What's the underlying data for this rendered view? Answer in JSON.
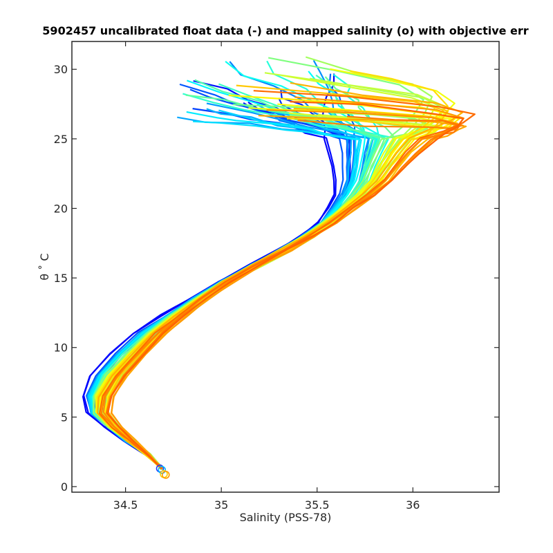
{
  "chart_data": {
    "type": "line",
    "title": "5902457 uncalibrated float data (-) and mapped salinity (o) with objective err",
    "xlabel": "Salinity (PSS-78)",
    "ylabel": "θ ˚ C",
    "xlim": [
      34.22,
      36.45
    ],
    "ylim": [
      -0.4,
      32
    ],
    "xticks": [
      34.5,
      35,
      35.5,
      36
    ],
    "xtick_labels": [
      "34.5",
      "35",
      "35.5",
      "36"
    ],
    "yticks": [
      0,
      5,
      10,
      15,
      20,
      25,
      30
    ],
    "ytick_labels": [
      "0",
      "5",
      "10",
      "15",
      "20",
      "25",
      "30"
    ],
    "grid": false,
    "colormap": "jet",
    "colormap_range": [
      0.12,
      0.78
    ],
    "profile_count": 60,
    "base_profile": {
      "S": [
        34.69,
        34.62,
        34.52,
        34.43,
        34.36,
        34.35,
        34.4,
        34.5,
        34.62,
        34.75,
        34.88,
        35.02,
        35.18,
        35.33,
        35.45,
        35.55,
        35.62,
        35.68,
        35.72,
        35.74,
        35.76,
        35.78
      ],
      "T": [
        1.3,
        2.3,
        3.3,
        4.3,
        5.3,
        6.5,
        8.0,
        9.5,
        11.0,
        12.3,
        13.5,
        14.7,
        15.9,
        17.0,
        18.0,
        19.0,
        20.0,
        21.0,
        22.0,
        23.0,
        24.0,
        25.0
      ]
    },
    "profile_variation": {
      "deep_shift": [
        0.0,
        0.0,
        0.02,
        0.04,
        0.06,
        0.1,
        0.13,
        0.13,
        0.11,
        0.08,
        0.05,
        0.03,
        0.02,
        0.02,
        0.03,
        0.05,
        0.1,
        0.17,
        0.25,
        0.32,
        0.4,
        0.5
      ],
      "spread": [
        0.0,
        0.01,
        0.02,
        0.03,
        0.04,
        0.04,
        0.04,
        0.04,
        0.04,
        0.035,
        0.03,
        0.03,
        0.03,
        0.03,
        0.03,
        0.03,
        0.03,
        0.03,
        0.04,
        0.05,
        0.06,
        0.07
      ]
    },
    "surface_layer": {
      "T_range": [
        25.0,
        30.8
      ],
      "S_extremes": [
        34.83,
        35.05,
        35.25,
        35.55,
        35.8,
        36.1,
        36.3,
        36.38
      ]
    },
    "mapped_points": [
      {
        "S": 34.68,
        "T": 1.3,
        "color": "#1f3cff"
      },
      {
        "S": 34.69,
        "T": 1.2,
        "color": "#00b8ff"
      },
      {
        "S": 34.7,
        "T": 0.9,
        "color": "#ffd000"
      },
      {
        "S": 34.71,
        "T": 0.85,
        "color": "#ff9900"
      }
    ]
  }
}
